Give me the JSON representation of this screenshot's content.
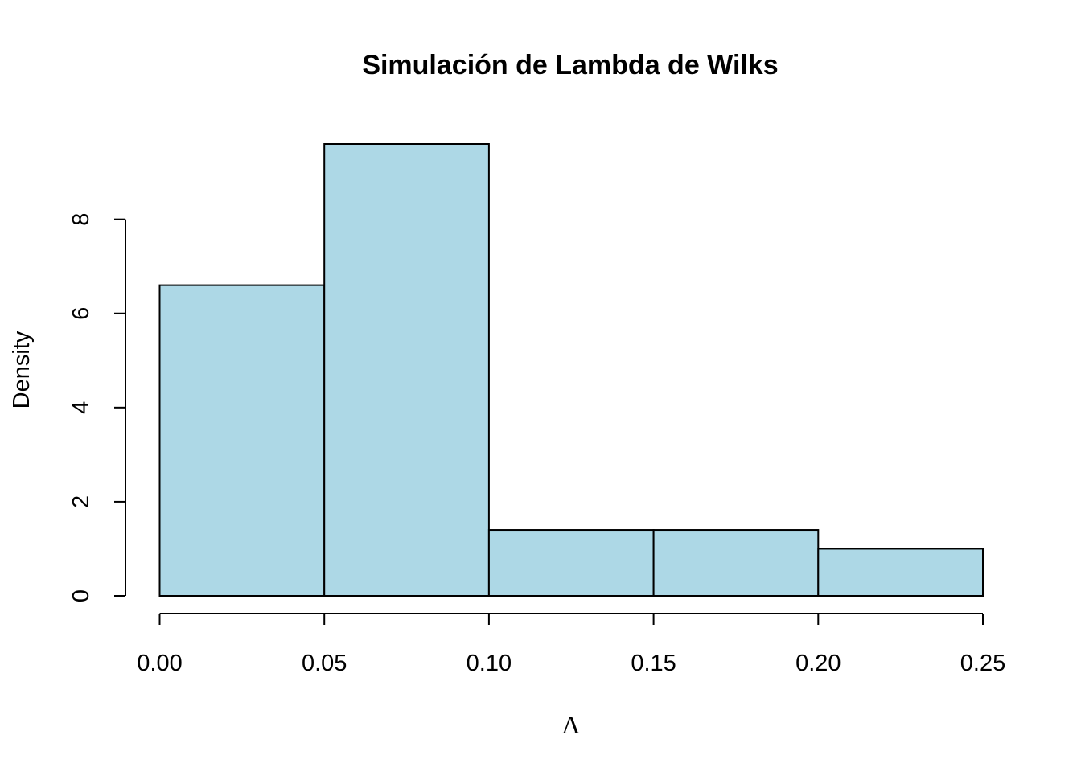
{
  "chart_data": {
    "type": "bar",
    "subtype": "histogram",
    "title": "Simulación de Lambda de Wilks",
    "xlabel": "Λ",
    "ylabel": "Density",
    "bins": [
      {
        "x0": 0.0,
        "x1": 0.05,
        "density": 6.6
      },
      {
        "x0": 0.05,
        "x1": 0.1,
        "density": 9.6
      },
      {
        "x0": 0.1,
        "x1": 0.15,
        "density": 1.4
      },
      {
        "x0": 0.15,
        "x1": 0.2,
        "density": 1.4
      },
      {
        "x0": 0.2,
        "x1": 0.25,
        "density": 1.0
      }
    ],
    "xticks": [
      "0.00",
      "0.05",
      "0.10",
      "0.15",
      "0.20",
      "0.25"
    ],
    "xtick_values": [
      0,
      0.05,
      0.1,
      0.15,
      0.2,
      0.25
    ],
    "yticks": [
      "0",
      "2",
      "4",
      "6",
      "8"
    ],
    "ytick_values": [
      0,
      2,
      4,
      6,
      8
    ],
    "xlim": [
      0,
      0.25
    ],
    "ylim": [
      0,
      9.6
    ],
    "bar_color": "#add8e6",
    "grid": false,
    "legend": "none"
  }
}
